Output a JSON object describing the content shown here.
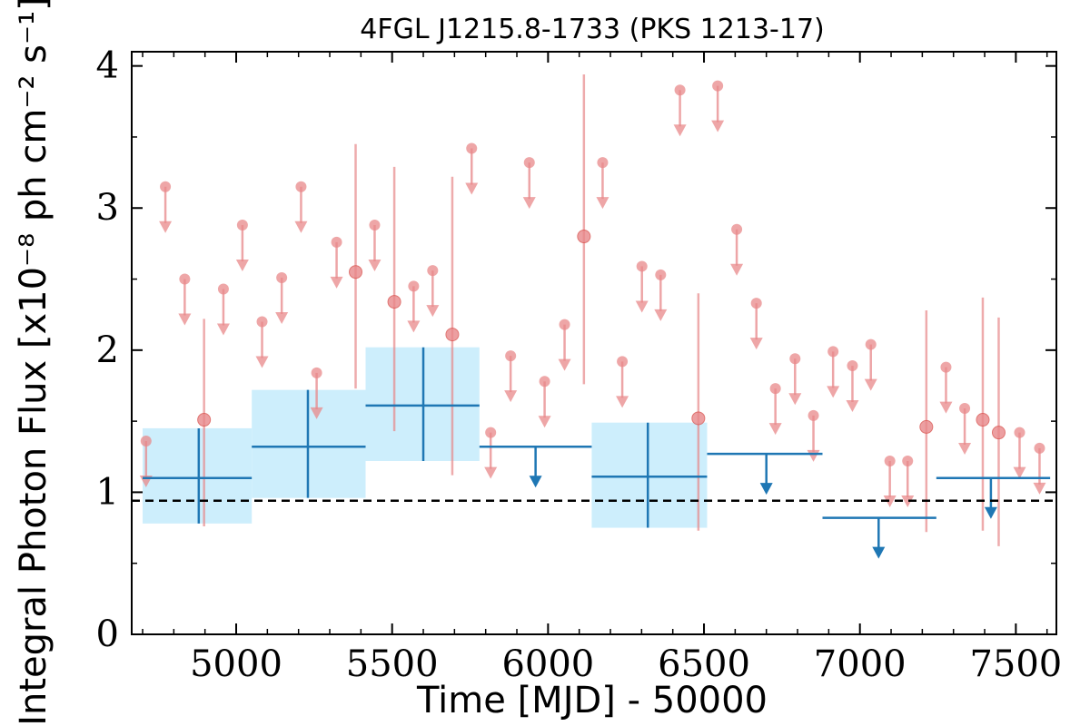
{
  "chart_data": {
    "type": "scatter",
    "title": "4FGL J1215.8-1733 (PKS 1213-17)",
    "xlabel": "Time [MJD] - 50000",
    "ylabel": "Integral Photon Flux [x10⁻⁸ ph cm⁻² s⁻¹]",
    "xlim": [
      4665,
      7630
    ],
    "ylim": [
      0,
      4.1
    ],
    "x_ticks": [
      5000,
      5500,
      6000,
      6500,
      7000,
      7500
    ],
    "y_ticks": [
      0,
      1,
      2,
      3,
      4
    ],
    "x_tick_labels": [
      "5000",
      "5500",
      "6000",
      "6500",
      "7000",
      "7500"
    ],
    "y_tick_labels": [
      "0",
      "1",
      "2",
      "3",
      "4"
    ],
    "reference_line": {
      "y": 0.94,
      "style": "dashed",
      "color": "#000000"
    },
    "colors": {
      "short_bins": "#e8888a",
      "long_bins": "#1f77b4",
      "long_bins_fill": "#cdeefc"
    },
    "series": [
      {
        "kind": "short_bins",
        "detections": [
          {
            "x": 4897,
            "y": 1.51,
            "lo": 0.76,
            "hi": 2.22
          },
          {
            "x": 5383,
            "y": 2.55,
            "lo": 1.73,
            "hi": 3.45
          },
          {
            "x": 5507,
            "y": 2.34,
            "lo": 1.43,
            "hi": 3.29
          },
          {
            "x": 5693,
            "y": 2.11,
            "lo": 1.12,
            "hi": 3.22
          },
          {
            "x": 6115,
            "y": 2.8,
            "lo": 1.76,
            "hi": 3.94
          },
          {
            "x": 6482,
            "y": 1.52,
            "lo": 0.73,
            "hi": 2.4
          },
          {
            "x": 7213,
            "y": 1.46,
            "lo": 0.72,
            "hi": 2.28
          },
          {
            "x": 7394,
            "y": 1.51,
            "lo": 0.73,
            "hi": 2.37
          },
          {
            "x": 7445,
            "y": 1.42,
            "lo": 0.62,
            "hi": 2.23
          }
        ],
        "upper_limits": [
          {
            "x": 4711,
            "y": 1.36
          },
          {
            "x": 4773,
            "y": 3.15
          },
          {
            "x": 4835,
            "y": 2.5
          },
          {
            "x": 4959,
            "y": 2.43
          },
          {
            "x": 5020,
            "y": 2.88
          },
          {
            "x": 5083,
            "y": 2.2
          },
          {
            "x": 5146,
            "y": 2.51
          },
          {
            "x": 5208,
            "y": 3.15
          },
          {
            "x": 5258,
            "y": 1.84
          },
          {
            "x": 5322,
            "y": 2.76
          },
          {
            "x": 5444,
            "y": 2.88
          },
          {
            "x": 5569,
            "y": 2.45
          },
          {
            "x": 5630,
            "y": 2.56
          },
          {
            "x": 5755,
            "y": 3.42
          },
          {
            "x": 5816,
            "y": 1.42
          },
          {
            "x": 5880,
            "y": 1.96
          },
          {
            "x": 5940,
            "y": 3.32
          },
          {
            "x": 5989,
            "y": 1.78
          },
          {
            "x": 6053,
            "y": 2.18
          },
          {
            "x": 6175,
            "y": 3.32
          },
          {
            "x": 6238,
            "y": 1.92
          },
          {
            "x": 6301,
            "y": 2.59
          },
          {
            "x": 6361,
            "y": 2.53
          },
          {
            "x": 6423,
            "y": 3.83
          },
          {
            "x": 6544,
            "y": 3.86
          },
          {
            "x": 6605,
            "y": 2.85
          },
          {
            "x": 6668,
            "y": 2.33
          },
          {
            "x": 6729,
            "y": 1.73
          },
          {
            "x": 6792,
            "y": 1.94
          },
          {
            "x": 6851,
            "y": 1.54
          },
          {
            "x": 6914,
            "y": 1.99
          },
          {
            "x": 6976,
            "y": 1.89
          },
          {
            "x": 7035,
            "y": 2.04
          },
          {
            "x": 7096,
            "y": 1.22
          },
          {
            "x": 7153,
            "y": 1.22
          },
          {
            "x": 7276,
            "y": 1.88
          },
          {
            "x": 7336,
            "y": 1.59
          },
          {
            "x": 7512,
            "y": 1.42
          },
          {
            "x": 7576,
            "y": 1.31
          }
        ]
      },
      {
        "kind": "long_bins",
        "detections": [
          {
            "x0": 4700,
            "x1": 5050,
            "y": 1.1,
            "lo": 0.78,
            "hi": 1.45,
            "x": 4880
          },
          {
            "x0": 5050,
            "x1": 5415,
            "y": 1.32,
            "lo": 0.96,
            "hi": 1.72,
            "x": 5230
          },
          {
            "x0": 5415,
            "x1": 5780,
            "y": 1.61,
            "lo": 1.22,
            "hi": 2.02,
            "x": 5600
          },
          {
            "x0": 6140,
            "x1": 6510,
            "y": 1.11,
            "lo": 0.75,
            "hi": 1.49,
            "x": 6320
          }
        ],
        "upper_limits": [
          {
            "x0": 5780,
            "x1": 6140,
            "x": 5960,
            "y": 1.32
          },
          {
            "x0": 6510,
            "x1": 6880,
            "x": 6700,
            "y": 1.27
          },
          {
            "x0": 6880,
            "x1": 7245,
            "x": 7060,
            "y": 0.82
          },
          {
            "x0": 7245,
            "x1": 7610,
            "x": 7420,
            "y": 1.1
          }
        ]
      }
    ]
  }
}
